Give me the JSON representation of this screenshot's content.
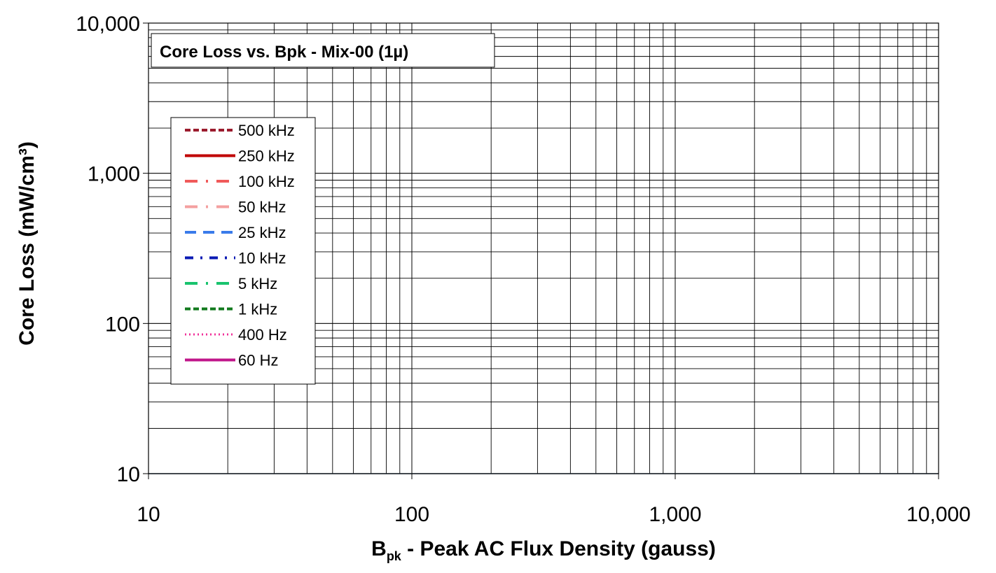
{
  "chart_data": {
    "type": "line",
    "title": "Core Loss vs. Bpk - Mix-00  (1µ)",
    "xlabel_main": "B",
    "xlabel_sub": "pk",
    "xlabel_rest": " - Peak AC Flux Density (gauss)",
    "ylabel": "Core Loss (mW/cm³)",
    "xscale": "log",
    "yscale": "log",
    "xlim": [
      10,
      10000
    ],
    "ylim": [
      10,
      10000
    ],
    "x_ticks": [
      {
        "value": 10,
        "label": "10"
      },
      {
        "value": 100,
        "label": "100"
      },
      {
        "value": 1000,
        "label": "1,000"
      },
      {
        "value": 10000,
        "label": "10,000"
      }
    ],
    "y_ticks": [
      {
        "value": 10,
        "label": "10"
      },
      {
        "value": 100,
        "label": "100"
      },
      {
        "value": 1000,
        "label": "1,000"
      },
      {
        "value": 10000,
        "label": "10,000"
      }
    ],
    "grid": true,
    "legend_position": "upper-left",
    "series": [
      {
        "name": "500 kHz",
        "color": "#9b1c2e",
        "dash": "dash",
        "values": []
      },
      {
        "name": "250 kHz",
        "color": "#c00000",
        "dash": "solid",
        "values": []
      },
      {
        "name": "100 kHz",
        "color": "#f05a5a",
        "dash": "longdashdot",
        "values": []
      },
      {
        "name": "50 kHz",
        "color": "#f4a0a0",
        "dash": "longdashdot",
        "values": []
      },
      {
        "name": "25 kHz",
        "color": "#3a7bea",
        "dash": "longdash",
        "values": []
      },
      {
        "name": "10 kHz",
        "color": "#0a1ab4",
        "dash": "dashdot",
        "values": []
      },
      {
        "name": "5 kHz",
        "color": "#19c36e",
        "dash": "longdashdot",
        "values": []
      },
      {
        "name": "1 kHz",
        "color": "#127a1e",
        "dash": "dash",
        "values": []
      },
      {
        "name": "400 Hz",
        "color": "#f0309a",
        "dash": "dot",
        "values": []
      },
      {
        "name": "60 Hz",
        "color": "#c0168a",
        "dash": "solid",
        "values": []
      }
    ]
  }
}
